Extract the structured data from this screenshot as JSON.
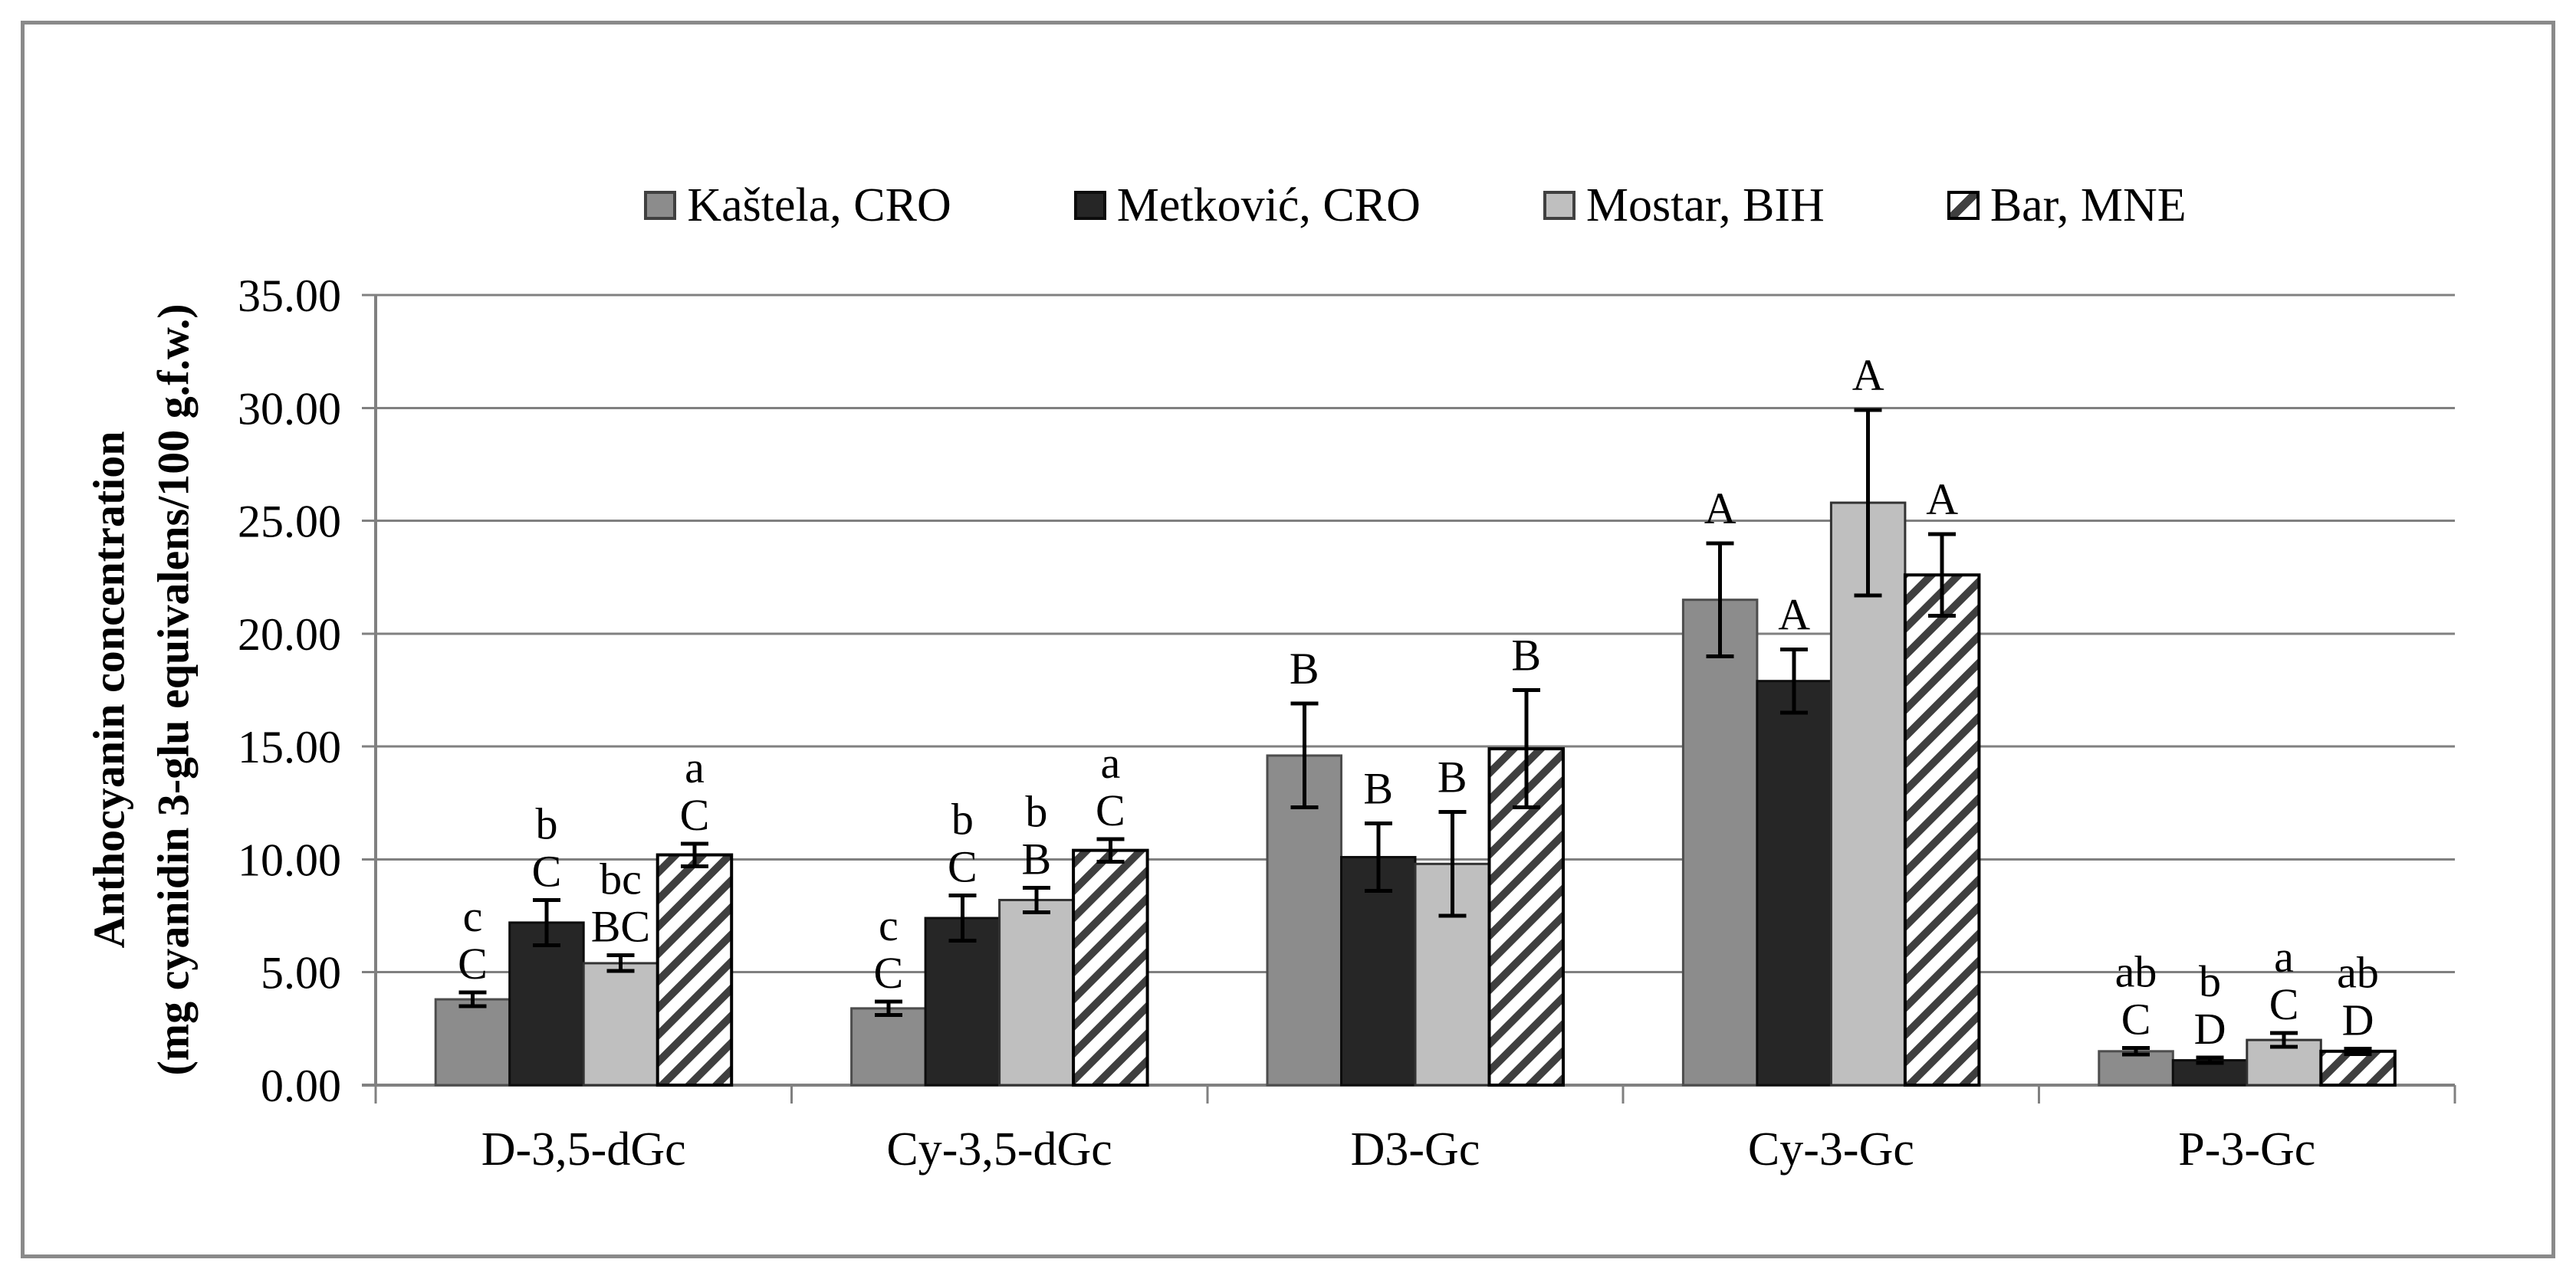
{
  "figure": {
    "border_color": "#8a8a8a",
    "background": "#ffffff"
  },
  "chart_data": {
    "type": "bar",
    "title": "",
    "ylabel_line1": "Anthocyanin concentration",
    "ylabel_line2": "(mg cyanidin 3-glu equivalens/100 g.f.w.)",
    "xlabel": "",
    "categories": [
      "D-3,5-dGc",
      "Cy-3,5-dGc",
      "D3-Gc",
      "Cy-3-Gc",
      "P-3-Gc"
    ],
    "ylim": [
      0,
      35
    ],
    "ytick_step": 5,
    "ytick_labels": [
      "0.00",
      "5.00",
      "10.00",
      "15.00",
      "20.00",
      "25.00",
      "30.00",
      "35.00"
    ],
    "grid": "horizontal",
    "gridline_color": "#808080",
    "legend_position": "top-center",
    "series": [
      {
        "name": "Kaštela, CRO",
        "fill": "#8C8C8C",
        "stroke": "#4d4d4d",
        "pattern": "solid",
        "values": [
          3.8,
          3.4,
          14.6,
          21.5,
          1.5
        ],
        "errors": [
          0.3,
          0.3,
          2.3,
          2.5,
          0.15
        ],
        "letters": [
          [
            "c",
            "C"
          ],
          [
            "c",
            "C"
          ],
          [
            "B"
          ],
          [
            "A"
          ],
          [
            "ab",
            "C"
          ]
        ]
      },
      {
        "name": "Metković, CRO",
        "fill": "#262626",
        "stroke": "#0d0d0d",
        "pattern": "solid",
        "values": [
          7.2,
          7.4,
          10.1,
          17.9,
          1.1
        ],
        "errors": [
          1.0,
          1.0,
          1.5,
          1.4,
          0.12
        ],
        "letters": [
          [
            "b",
            "C"
          ],
          [
            "b",
            "C"
          ],
          [
            "B"
          ],
          [
            "A"
          ],
          [
            "b",
            "D"
          ]
        ]
      },
      {
        "name": "Mostar, BIH",
        "fill": "#BFBFBF",
        "stroke": "#333333",
        "pattern": "solid",
        "values": [
          5.4,
          8.2,
          9.8,
          25.8,
          2.0
        ],
        "errors": [
          0.35,
          0.55,
          2.3,
          4.1,
          0.3
        ],
        "letters": [
          [
            "bc",
            "BC"
          ],
          [
            "b",
            "B"
          ],
          [
            "B"
          ],
          [
            "A"
          ],
          [
            "a",
            "C"
          ]
        ]
      },
      {
        "name": "Bar, MNE",
        "fill": "hatch",
        "stroke": "#000000",
        "pattern": "diagonal-hatch",
        "hatch_color": "#3f3f3f",
        "values": [
          10.2,
          10.4,
          14.9,
          22.6,
          1.5
        ],
        "errors": [
          0.5,
          0.5,
          2.6,
          1.8,
          0.12
        ],
        "letters": [
          [
            "a",
            "C"
          ],
          [
            "a",
            "C"
          ],
          [
            "B"
          ],
          [
            "A"
          ],
          [
            "ab",
            "D"
          ]
        ]
      }
    ]
  }
}
